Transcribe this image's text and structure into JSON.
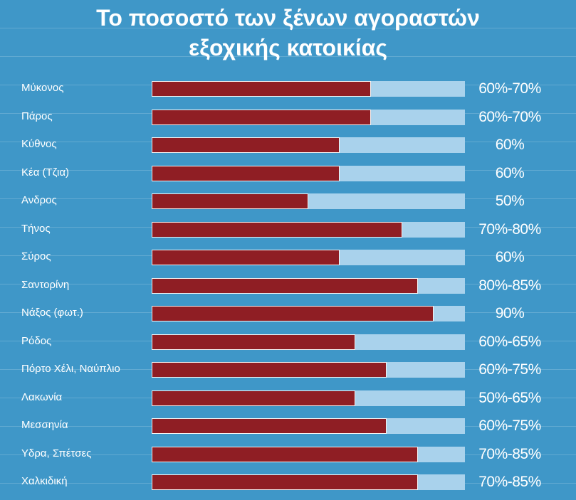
{
  "chart_data": {
    "type": "bar",
    "title": "Το ποσοστό των ξένων αγοραστών εξοχικής κατοικίας",
    "title_lines": [
      "Το ποσοστό των ξένων αγοραστών",
      "εξοχικής κατοικίας"
    ],
    "categories": [
      "Μύκονος",
      "Πάρος",
      "Κύθνος",
      "Κέα (Τζια)",
      "Ανδρος",
      "Τήνος",
      "Σύρος",
      "Σαντορίνη",
      "Νάξος (φωτ.)",
      "Ρόδος",
      "Πόρτο Χέλι, Ναύπλιο",
      "Λακωνία",
      "Μεσσηνία",
      "Υδρα, Σπέτσες",
      "Χαλκιδική"
    ],
    "values": [
      70,
      70,
      60,
      60,
      50,
      80,
      60,
      85,
      90,
      65,
      75,
      65,
      75,
      85,
      85
    ],
    "value_labels": [
      "60%-70%",
      "60%-70%",
      "60%",
      "60%",
      "50%",
      "70%-80%",
      "60%",
      "80%-85%",
      "90%",
      "60%-65%",
      "60%-75%",
      "50%-65%",
      "60%-75%",
      "70%-85%",
      "70%-85%"
    ],
    "xlim": [
      0,
      100
    ],
    "xlabel": "",
    "ylabel": "",
    "grid": false,
    "colors": {
      "bar": "#8f1e24",
      "track": "#a9d2ec",
      "background": "#3f97c8",
      "text": "#ffffff"
    }
  }
}
